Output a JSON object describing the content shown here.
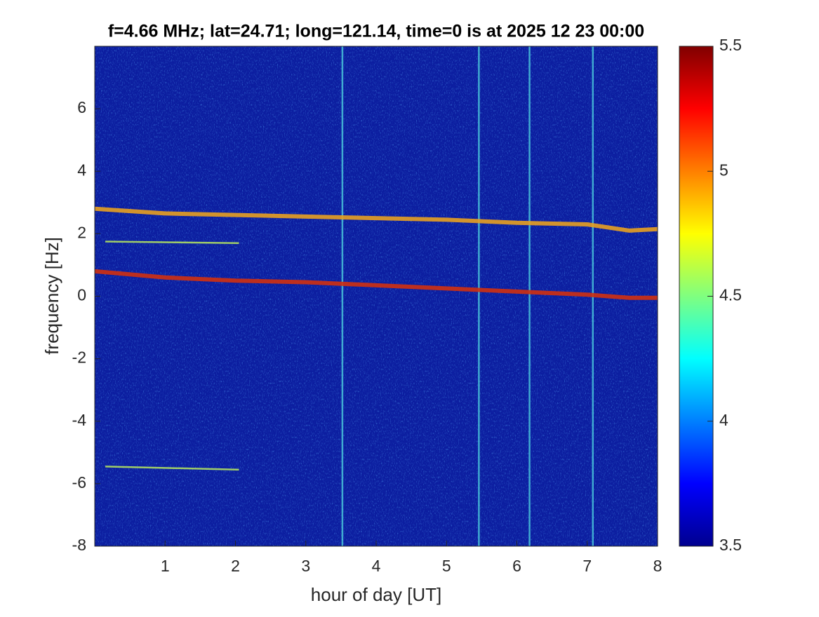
{
  "chart_data": {
    "type": "spectrogram",
    "title": "f=4.66 MHz;  lat=24.71; long=121.14, time=0 is at 2025 12 23 00:00",
    "xlabel": "hour of day [UT]",
    "ylabel": "frequency [Hz]",
    "xlim": [
      0,
      8
    ],
    "xticks": [
      1,
      2,
      3,
      4,
      5,
      6,
      7,
      8
    ],
    "ylim": [
      -8,
      8
    ],
    "yticks": [
      -8,
      -6,
      -4,
      -2,
      0,
      2,
      4,
      6
    ],
    "colormap": "jet",
    "clim": [
      3.5,
      5.5
    ],
    "cticks": [
      3.5,
      4,
      4.5,
      5,
      5.5
    ],
    "background_color": "#0c1ea0",
    "series": [
      {
        "color": "#e8a020",
        "x": [
          0,
          1,
          2,
          3,
          4,
          5,
          6,
          7,
          7.6,
          8
        ],
        "values": [
          2.8,
          2.65,
          2.6,
          2.55,
          2.5,
          2.45,
          2.35,
          2.3,
          2.1,
          2.15
        ]
      },
      {
        "color": "#d03010",
        "x": [
          0,
          1,
          2,
          3,
          4,
          5,
          6,
          7,
          7.6,
          8
        ],
        "values": [
          0.8,
          0.6,
          0.5,
          0.45,
          0.35,
          0.25,
          0.15,
          0.05,
          -0.05,
          -0.05
        ]
      },
      {
        "color": "#b0e060",
        "x": [
          0.15,
          2.05
        ],
        "values": [
          1.75,
          1.7
        ]
      },
      {
        "color": "#b0e060",
        "x": [
          0.15,
          2.05
        ],
        "values": [
          -5.45,
          -5.55
        ]
      }
    ],
    "vertical_lines": [
      3.52,
      5.46,
      6.18,
      7.08
    ]
  }
}
